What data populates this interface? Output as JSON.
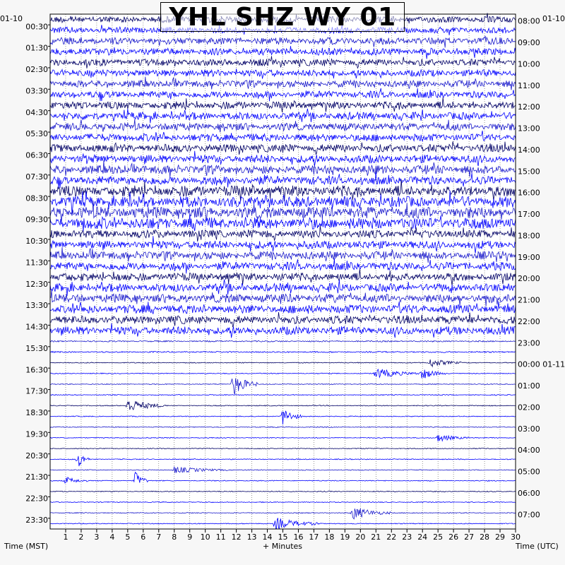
{
  "title": "YHL SHZ WY 01",
  "left_date": "01-10",
  "right_date": "01-10",
  "left_axis_label": "Time (MST)",
  "x_axis_label": "+ Minutes",
  "right_axis_label": "Time (UTC)",
  "colors": {
    "trace_dark": "#000066",
    "trace_bright": "#0000ff",
    "trace_mid": "#1a1acc",
    "grid": "#000000",
    "background": "#ffffff"
  },
  "chart_data": {
    "type": "line",
    "description_kind": "helicorder",
    "xlim": [
      0,
      30
    ],
    "x_ticks": [
      1,
      2,
      3,
      4,
      5,
      6,
      7,
      8,
      9,
      10,
      11,
      12,
      13,
      14,
      15,
      16,
      17,
      18,
      19,
      20,
      21,
      22,
      23,
      24,
      25,
      26,
      27,
      28,
      29,
      30
    ],
    "rows_per_hour": 2,
    "row_count": 48,
    "left_labels": [
      "00:30",
      "01:30",
      "02:30",
      "03:30",
      "04:30",
      "05:30",
      "06:30",
      "07:30",
      "08:30",
      "09:30",
      "10:30",
      "11:30",
      "12:30",
      "13:30",
      "14:30",
      "15:30",
      "16:30",
      "17:30",
      "18:30",
      "19:30",
      "20:30",
      "21:30",
      "22:30",
      "23:30"
    ],
    "right_labels": [
      "08:00",
      "09:00",
      "10:00",
      "11:00",
      "12:00",
      "13:00",
      "14:00",
      "15:00",
      "16:00",
      "17:00",
      "18:00",
      "19:00",
      "20:00",
      "21:00",
      "22:00",
      "23:00",
      "00:00 01-11",
      "01:00",
      "02:00",
      "03:00",
      "04:00",
      "05:00",
      "06:00",
      "07:00"
    ],
    "noise_level_by_hour": [
      0.55,
      0.6,
      0.6,
      0.6,
      0.65,
      0.65,
      0.7,
      0.75,
      0.95,
      1.0,
      0.7,
      0.7,
      0.7,
      0.75,
      0.7,
      0.12,
      0.08,
      0.08,
      0.08,
      0.08,
      0.08,
      0.08,
      0.08,
      0.08
    ],
    "events": [
      {
        "row": 32,
        "minute": 24.5,
        "amp": 0.35,
        "dur": 2.0
      },
      {
        "row": 33,
        "minute": 21.0,
        "amp": 0.4,
        "dur": 3.0
      },
      {
        "row": 33,
        "minute": 24.0,
        "amp": 0.45,
        "dur": 1.5
      },
      {
        "row": 34,
        "minute": 11.8,
        "amp": 0.9,
        "dur": 1.6
      },
      {
        "row": 36,
        "minute": 5.0,
        "amp": 0.55,
        "dur": 2.5
      },
      {
        "row": 37,
        "minute": 15.0,
        "amp": 0.7,
        "dur": 1.2
      },
      {
        "row": 39,
        "minute": 25.0,
        "amp": 0.3,
        "dur": 2.0
      },
      {
        "row": 41,
        "minute": 1.8,
        "amp": 0.7,
        "dur": 0.8
      },
      {
        "row": 42,
        "minute": 8.0,
        "amp": 0.25,
        "dur": 3.5
      },
      {
        "row": 43,
        "minute": 5.5,
        "amp": 0.75,
        "dur": 0.8
      },
      {
        "row": 43,
        "minute": 1.0,
        "amp": 0.3,
        "dur": 1.5
      },
      {
        "row": 46,
        "minute": 19.5,
        "amp": 0.5,
        "dur": 2.5
      },
      {
        "row": 47,
        "minute": 14.5,
        "amp": 0.45,
        "dur": 3.0
      }
    ]
  }
}
